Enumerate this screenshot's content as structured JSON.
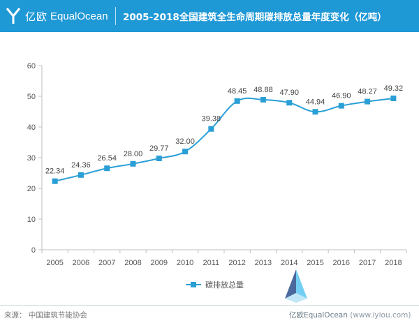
{
  "header": {
    "brand_cn": "亿欧",
    "brand_en": "EqualOcean",
    "title": "2005-2018全国建筑全生命周期碳排放总量年度变化（亿吨）"
  },
  "colors": {
    "header_bg": "#1f98d6",
    "series": "#2a9fd6",
    "axis": "#bfbfbf",
    "text": "#555555"
  },
  "chart_data": {
    "type": "line",
    "x": [
      "2005",
      "2006",
      "2007",
      "2008",
      "2009",
      "2010",
      "2011",
      "2012",
      "2013",
      "2014",
      "2015",
      "2016",
      "2017",
      "2018"
    ],
    "series": [
      {
        "name": "碳排放总量",
        "values": [
          22.34,
          24.36,
          26.54,
          28.0,
          29.77,
          32.0,
          39.38,
          48.45,
          48.88,
          47.9,
          44.94,
          46.9,
          48.27,
          49.32
        ],
        "labels": [
          "22.34",
          "24.36",
          "26.54",
          "28.00",
          "29.77",
          "32.00",
          "39.38",
          "48.45",
          "48.88",
          "47.90",
          "44.94",
          "46.90",
          "48.27",
          "49.32"
        ]
      }
    ],
    "yticks": [
      "0",
      "10",
      "20",
      "30",
      "40",
      "50",
      "60"
    ],
    "ylim": [
      0,
      60
    ],
    "grid": false,
    "legend": "bottom-center",
    "marker": "square",
    "smooth": true
  },
  "footer": {
    "source": "来源：  中国建筑节能协会",
    "watermark_brand": "亿欧EqualOcean",
    "watermark_url": "(www.iyiou.com)"
  }
}
